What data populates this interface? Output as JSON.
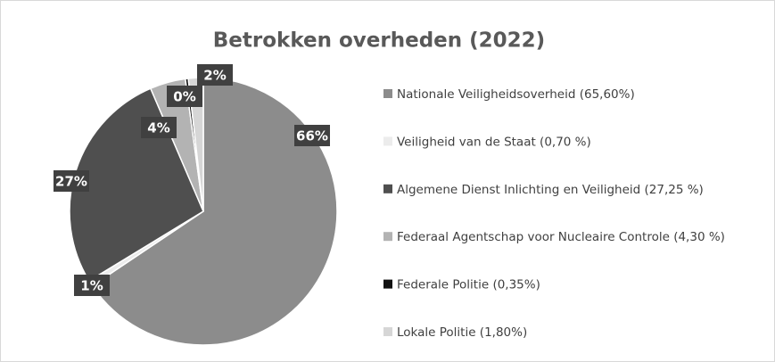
{
  "chart_data": {
    "type": "pie",
    "title": "Betrokken overheden (2022)",
    "categories": [
      "Nationale Veiligheidsoverheid (65,60%)",
      "Veiligheid van de Staat (0,70 %)",
      "Algemene Dienst Inlichting en Veiligheid (27,25 %)",
      "Federaal Agentschap voor Nucleaire Controle (4,30 %)",
      "Federale Politie (0,35%)",
      "Lokale Politie (1,80%)"
    ],
    "values": [
      65.6,
      0.7,
      27.25,
      4.3,
      0.35,
      1.8
    ],
    "value_labels": [
      "66%",
      "1%",
      "27%",
      "4%",
      "0%",
      "2%"
    ],
    "colors": [
      "#8c8c8c",
      "#ececec",
      "#4f4f4f",
      "#b3b3b3",
      "#111111",
      "#d6d6d6"
    ],
    "legend": "right"
  }
}
